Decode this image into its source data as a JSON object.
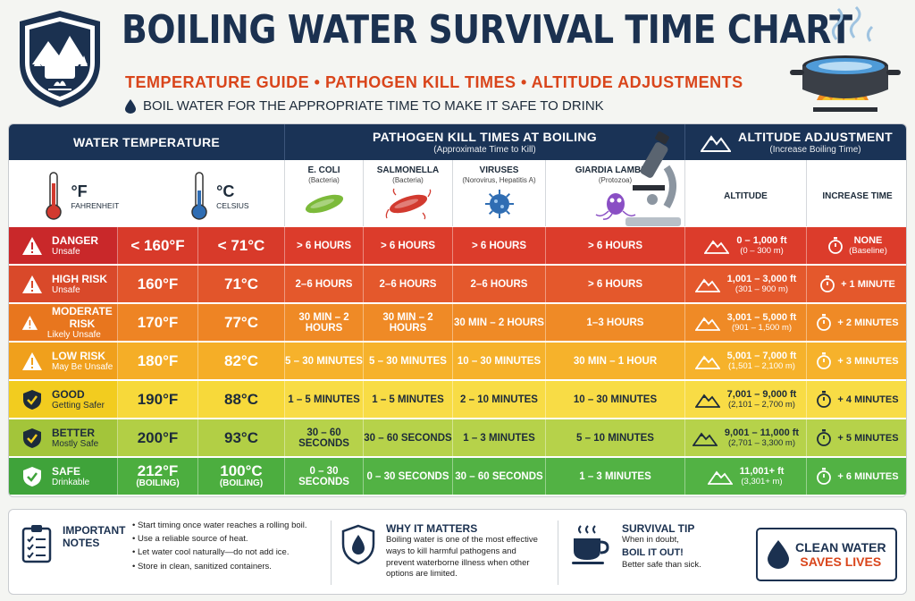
{
  "header": {
    "title": "BOILING WATER SURVIVAL TIME CHART",
    "subtitle": "TEMPERATURE GUIDE • PATHOGEN KILL TIMES • ALTITUDE ADJUSTMENTS",
    "tagline": "BOIL WATER FOR THE APPROPRIATE TIME TO MAKE IT SAFE TO DRINK",
    "logo_icon": "mountain-pot-logo-icon",
    "pot_icon": "boiling-pot-icon"
  },
  "columns": {
    "water_temp": "WATER TEMPERATURE",
    "fahrenheit_symbol": "°F",
    "fahrenheit_label": "FAHRENHEIT",
    "celsius_symbol": "°C",
    "celsius_label": "CELSIUS",
    "pathogen": "PATHOGEN KILL TIMES AT BOILING",
    "pathogen_sub": "(Approximate Time to Kill)",
    "altitude_group": "ALTITUDE ADJUSTMENT",
    "altitude_group_sub": "(Increase Boiling Time)",
    "altitude": "ALTITUDE",
    "increase": "INCREASE TIME",
    "pathogens": [
      {
        "name": "E. COLI",
        "type": "(Bacteria)",
        "color": "#7cba3a"
      },
      {
        "name": "SALMONELLA",
        "type": "(Bacteria)",
        "color": "#d23a2f"
      },
      {
        "name": "VIRUSES",
        "type": "(Norovirus, Hepatitis A)",
        "color": "#2f6db3"
      },
      {
        "name": "GIARDIA LAMBLIA",
        "type": "(Protozoa)",
        "color": "#8a4fc4"
      }
    ]
  },
  "rows": [
    {
      "status": "DANGER",
      "note": "Unsafe",
      "icon": "warning-icon",
      "f": "< 160°F",
      "c": "< 71°C",
      "boil": "",
      "k": [
        "> 6 HOURS",
        "> 6 HOURS",
        "> 6 HOURS",
        "> 6 HOURS"
      ],
      "alt": "0 – 1,000 ft",
      "alt_m": "(0 – 300 m)",
      "inc": "NONE",
      "inc_sub": "(Baseline)",
      "colors": [
        "#c9282a",
        "#d83a2a",
        "#dc3c2b"
      ]
    },
    {
      "status": "HIGH RISK",
      "note": "Unsafe",
      "icon": "warning-icon",
      "f": "160°F",
      "c": "71°C",
      "boil": "",
      "k": [
        "2–6 HOURS",
        "2–6 HOURS",
        "2–6 HOURS",
        "> 6 HOURS"
      ],
      "alt": "1,001 – 3,000 ft",
      "alt_m": "(301 – 900 m)",
      "inc": "+ 1 MINUTE",
      "inc_sub": "",
      "colors": [
        "#d9492a",
        "#e2552b",
        "#e4582c"
      ]
    },
    {
      "status": "MODERATE RISK",
      "note": "Likely Unsafe",
      "icon": "warning-icon",
      "f": "170°F",
      "c": "77°C",
      "boil": "",
      "k": [
        "30 MIN – 2 HOURS",
        "30 MIN – 2 HOURS",
        "30 MIN – 2 HOURS",
        "1–3 HOURS"
      ],
      "alt": "3,001 – 5,000 ft",
      "alt_m": "(901 – 1,500 m)",
      "inc": "+ 2 MINUTES",
      "inc_sub": "",
      "colors": [
        "#e8761e",
        "#ee8424",
        "#ef8a26"
      ]
    },
    {
      "status": "LOW RISK",
      "note": "May Be Unsafe",
      "icon": "warning-icon",
      "f": "180°F",
      "c": "82°C",
      "boil": "",
      "k": [
        "5 – 30 MINUTES",
        "5 – 30 MINUTES",
        "10 – 30 MINUTES",
        "30 MIN – 1 HOUR"
      ],
      "alt": "5,001 – 7,000 ft",
      "alt_m": "(1,501 – 2,100 m)",
      "inc": "+ 3 MINUTES",
      "inc_sub": "",
      "colors": [
        "#f0a01c",
        "#f5ae27",
        "#f6b22b"
      ]
    },
    {
      "status": "GOOD",
      "note": "Getting Safer",
      "icon": "shield-check-icon",
      "f": "190°F",
      "c": "88°C",
      "boil": "",
      "k": [
        "1 – 5 MINUTES",
        "1 – 5 MINUTES",
        "2 – 10 MINUTES",
        "10 – 30 MINUTES"
      ],
      "alt": "7,001 – 9,000 ft",
      "alt_m": "(2,101 – 2,700 m)",
      "inc": "+ 4 MINUTES",
      "inc_sub": "",
      "colors": [
        "#f2cc1f",
        "#f7d93a",
        "#f8dc45"
      ]
    },
    {
      "status": "BETTER",
      "note": "Mostly Safe",
      "icon": "shield-check-icon",
      "f": "200°F",
      "c": "93°C",
      "boil": "",
      "k": [
        "30 – 60 SECONDS",
        "30 – 60 SECONDS",
        "1 – 3 MINUTES",
        "5 – 10 MINUTES"
      ],
      "alt": "9,001 – 11,000 ft",
      "alt_m": "(2,701 – 3,300 m)",
      "inc": "+ 5 MINUTES",
      "inc_sub": "",
      "colors": [
        "#a3c53a",
        "#b2cf45",
        "#b6d24a"
      ]
    },
    {
      "status": "SAFE",
      "note": "Drinkable",
      "icon": "shield-check-icon",
      "f": "212°F",
      "c": "100°C",
      "boil": "(BOILING)",
      "k": [
        "0 – 30 SECONDS",
        "0 – 30 SECONDS",
        "30 – 60 SECONDS",
        "1 – 3 MINUTES"
      ],
      "alt": "11,001+ ft",
      "alt_m": "(3,301+ m)",
      "inc": "+ 6 MINUTES",
      "inc_sub": "",
      "colors": [
        "#3fa33a",
        "#4cae3f",
        "#52b244"
      ]
    }
  ],
  "notes": {
    "important_title_1": "IMPORTANT",
    "important_title_2": "NOTES",
    "important_items": [
      "Start timing once water reaches a rolling boil.",
      "Use a reliable source of heat.",
      "Let water cool naturally—do not add ice.",
      "Store in clean, sanitized containers."
    ],
    "why_title": "WHY IT MATTERS",
    "why_text": "Boiling water is one of the most effective ways to kill harmful pathogens and prevent waterborne illness when other options are limited.",
    "tip_title": "SURVIVAL TIP",
    "tip_1": "When in doubt,",
    "tip_2": "BOIL IT OUT!",
    "tip_3": "Better safe than sick.",
    "cta_1": "CLEAN WATER",
    "cta_2": "SAVES LIVES"
  }
}
